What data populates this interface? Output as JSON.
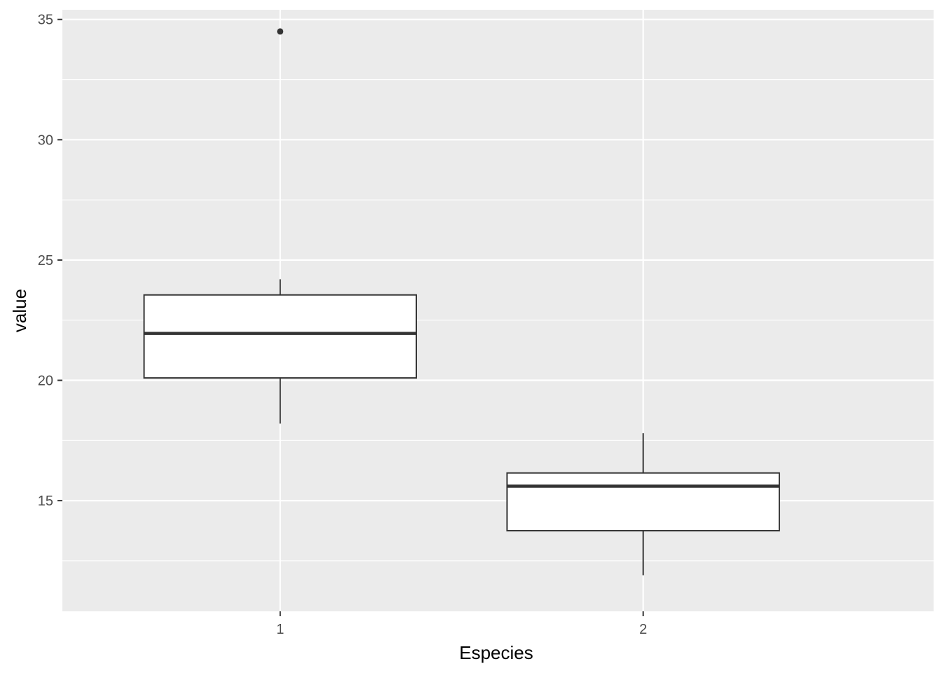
{
  "chart_data": {
    "type": "boxplot",
    "xlabel": "Especies",
    "ylabel": "value",
    "categories": [
      "1",
      "2"
    ],
    "ylim": [
      10.4,
      35.4
    ],
    "yticks": [
      15,
      20,
      25,
      30,
      35
    ],
    "grid": true,
    "boxes": [
      {
        "category": "1",
        "whisker_low": 18.2,
        "q1": 20.1,
        "median": 21.95,
        "q3": 23.55,
        "whisker_high": 24.2,
        "outliers": [
          34.5
        ]
      },
      {
        "category": "2",
        "whisker_low": 11.9,
        "q1": 13.75,
        "median": 15.6,
        "q3": 16.15,
        "whisker_high": 17.8,
        "outliers": []
      }
    ],
    "colors": {
      "panel": "#ebebeb",
      "grid": "#ffffff",
      "box_fill": "#ffffff",
      "box_stroke": "#333333"
    }
  }
}
